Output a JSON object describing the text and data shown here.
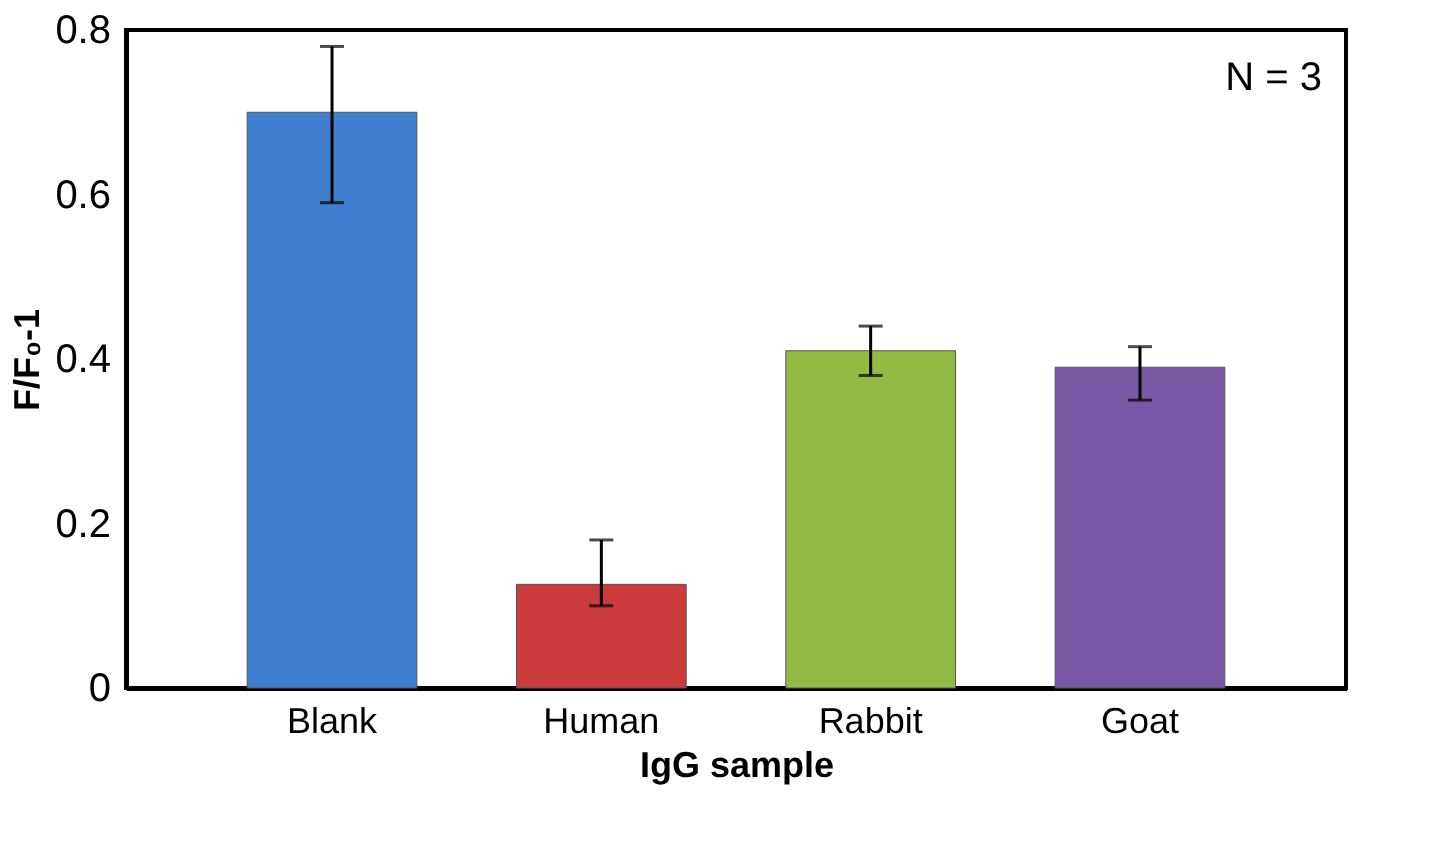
{
  "chart_data": {
    "type": "bar",
    "categories": [
      "Blank",
      "Human",
      "Rabbit",
      "Goat"
    ],
    "values": [
      0.7,
      0.126,
      0.41,
      0.39
    ],
    "colors": [
      "#3f7fd0",
      "#cc3b3b",
      "#93bb44",
      "#7a57a5"
    ],
    "errors": [
      [
        0.59,
        0.78
      ],
      [
        0.1,
        0.18
      ],
      [
        0.38,
        0.44
      ],
      [
        0.35,
        0.415
      ]
    ],
    "xlabel": "IgG sample",
    "ylabel": "F/F₀-1",
    "ylim": [
      0,
      0.8
    ],
    "yticks": [
      0,
      0.2,
      0.4,
      0.6,
      0.8
    ],
    "annotations": [
      "N = 3"
    ],
    "grid": false
  }
}
